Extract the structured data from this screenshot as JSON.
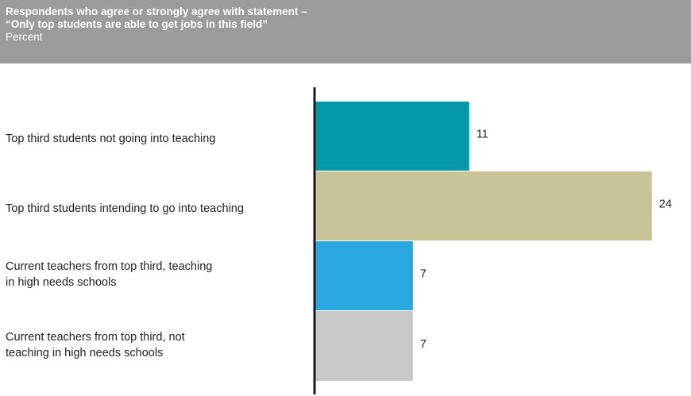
{
  "header": {
    "title_line1": "Respondents who agree or strongly agree with statement –",
    "title_line2": "“Only top students are able to get jobs in this field”",
    "subtitle": "Percent"
  },
  "chart_data": {
    "type": "bar",
    "orientation": "horizontal",
    "title": "Respondents who agree or strongly agree with statement – “Only top students are able to get jobs in this field”",
    "subtitle": "Percent",
    "categories": [
      [
        "Top third students not going into teaching"
      ],
      [
        "Top third students intending to go into teaching"
      ],
      [
        "Current teachers from top third, teaching",
        "in high needs schools"
      ],
      [
        "Current teachers from top third, not",
        "teaching in high needs schools"
      ]
    ],
    "values": [
      11,
      24,
      7,
      7
    ],
    "colors": [
      "#0399a8",
      "#c8c497",
      "#29a9e0",
      "#c8c8c8"
    ],
    "xlim": [
      0,
      24
    ],
    "grid": false,
    "legend": "none"
  }
}
